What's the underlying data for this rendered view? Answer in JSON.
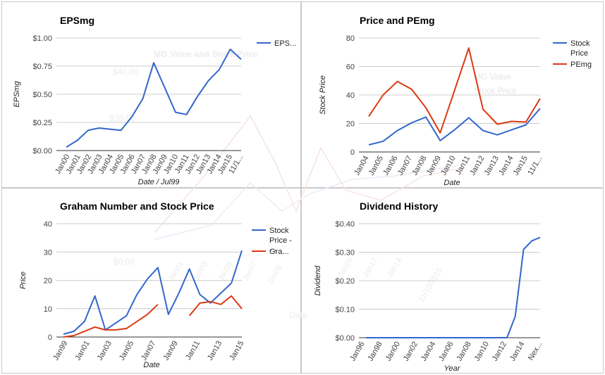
{
  "chart_data": [
    {
      "id": "eps",
      "type": "line",
      "title": "EPSmg",
      "xlabel": "Date / Jul99",
      "ylabel": "EPSmg",
      "ylim": [
        0,
        1.0
      ],
      "y_ticks": [
        "$0.00",
        "$0.25",
        "$0.50",
        "$0.75",
        "$1.00"
      ],
      "x_tick_labels": [
        "Jan00",
        "Jan01",
        "Jan02",
        "Jan03",
        "Jan04",
        "Jan05",
        "Jan06",
        "Jan07",
        "Jan08",
        "Jan09",
        "Jan10",
        "Jan11",
        "Jan12",
        "Jan13",
        "Jan14",
        "Jan15",
        "11/1..."
      ],
      "series": [
        {
          "name": "EPS...",
          "color": "#3366cc",
          "values": [
            0.03,
            0.09,
            0.18,
            0.2,
            0.19,
            0.18,
            0.3,
            0.46,
            0.78,
            0.56,
            0.34,
            0.32,
            0.48,
            0.62,
            0.72,
            0.9,
            0.81
          ]
        }
      ],
      "legend": "right"
    },
    {
      "id": "pe",
      "type": "line",
      "title": "Price and PEmg",
      "xlabel": "Date",
      "ylabel": "Stock Price",
      "ylim": [
        0,
        80
      ],
      "y_ticks": [
        "0",
        "20",
        "40",
        "60",
        "80"
      ],
      "x_tick_labels": [
        "Jan04",
        "Jan05",
        "Jan06",
        "Jan07",
        "Jan08",
        "Jan09",
        "Jan10",
        "Jan11",
        "Jan12",
        "Jan13",
        "Jan14",
        "Jan15",
        "11/1..."
      ],
      "series": [
        {
          "name": "Stock Price",
          "color": "#3366cc",
          "values": [
            5,
            7.5,
            15,
            20.5,
            24.5,
            8,
            15.5,
            24,
            15,
            12,
            15.5,
            19,
            30.5
          ]
        },
        {
          "name": "PEmg",
          "color": "#dc3912",
          "values": [
            25,
            40,
            49.5,
            44,
            31,
            13.5,
            43,
            73,
            30,
            19.5,
            21.5,
            21,
            37.5
          ]
        }
      ],
      "legend": "right"
    },
    {
      "id": "graham",
      "type": "line",
      "title": "Graham Number and Stock Price",
      "xlabel": "Date",
      "ylabel": "Price",
      "ylim": [
        0,
        40
      ],
      "y_ticks": [
        "0",
        "10",
        "20",
        "30",
        "40"
      ],
      "x_tick_labels": [
        "Jan99",
        "Jan01",
        "Jan03",
        "Jan05",
        "Jan07",
        "Jan09",
        "Jan11",
        "Jan13",
        "Jan15"
      ],
      "x_range": [
        0,
        17
      ],
      "series": [
        {
          "name": "Stock Price - - -",
          "color": "#3366cc",
          "x": [
            0,
            1,
            2,
            3,
            4,
            5,
            6,
            7,
            8,
            9,
            10,
            11,
            12,
            13,
            14,
            15,
            16
          ],
          "values": [
            1,
            2,
            5.5,
            14.5,
            2.5,
            5,
            7.5,
            15,
            20.5,
            24.5,
            8,
            15.5,
            24,
            15,
            12,
            15.5,
            19
          ]
        },
        {
          "name": "Gra...",
          "color": "#dc3912",
          "segments": [
            {
              "x": [
                0,
                1,
                2,
                3,
                4,
                5,
                6,
                7,
                8,
                9
              ],
              "values": [
                0,
                0.5,
                2,
                3.5,
                2.5,
                2.5,
                3,
                5.5,
                8,
                11.5
              ]
            },
            {
              "x": [
                12,
                13,
                14,
                15,
                16,
                17
              ],
              "values": [
                7.5,
                12,
                12.5,
                11.5,
                14.5,
                10
              ]
            }
          ]
        }
      ],
      "graham_blue_tail": {
        "x": [
          16,
          17
        ],
        "values": [
          19,
          30.5
        ]
      },
      "legend": "right"
    },
    {
      "id": "dividend",
      "type": "line",
      "title": "Dividend History",
      "xlabel": "Year",
      "ylabel": "Dividend",
      "ylim": [
        0,
        0.4
      ],
      "y_ticks": [
        "$0.00",
        "$0.10",
        "$0.20",
        "$0.30",
        "$0.40"
      ],
      "x_tick_labels": [
        "Jan96",
        "Jan98",
        "Jan00",
        "Jan02",
        "Jan04",
        "Jan06",
        "Jan08",
        "Jan10",
        "Jan12",
        "Jan14",
        "Nex..."
      ],
      "series": [
        {
          "name": "Dividend",
          "color": "#3366cc",
          "x": [
            0,
            1,
            2,
            3,
            4,
            5,
            6,
            7,
            8,
            9,
            10,
            11,
            12,
            13,
            14,
            15,
            16,
            17,
            18,
            19,
            20,
            21
          ],
          "values": [
            0,
            0,
            0,
            0,
            0,
            0,
            0,
            0,
            0,
            0,
            0,
            0,
            0,
            0,
            0,
            0,
            0,
            0,
            0.075,
            0.31,
            0.34,
            0.352
          ]
        }
      ],
      "legend": "none"
    }
  ],
  "watermark": {
    "title": "MG Value and Stock Price",
    "labels": [
      "$40.00",
      "$20.00",
      "$0.00",
      "Date",
      "MG Value",
      "Stock Price",
      "Jan10",
      "Jan12",
      "Jan14",
      "11/13/2015",
      "Jan01",
      "Jan03",
      "Jan05",
      "Jan07",
      "Jan09"
    ]
  }
}
